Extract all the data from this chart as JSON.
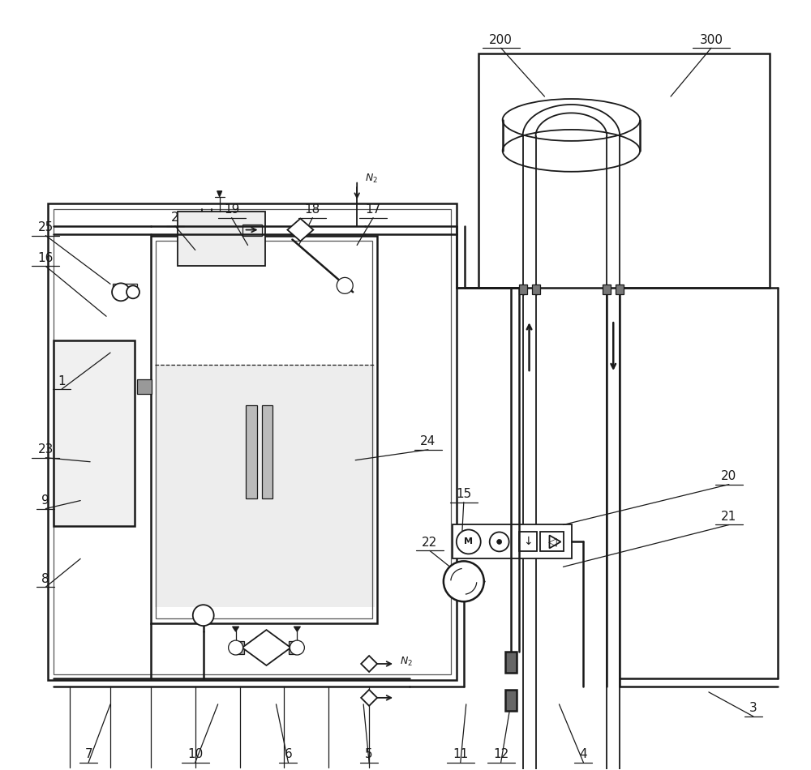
{
  "bg_color": "#ffffff",
  "lc": "#1a1a1a",
  "lw_main": 1.8,
  "lw_med": 1.3,
  "lw_thin": 0.9,
  "labels": [
    [
      "1",
      75,
      470,
      135,
      435
    ],
    [
      "2",
      215,
      268,
      240,
      308
    ],
    [
      "3",
      930,
      875,
      875,
      855
    ],
    [
      "4",
      720,
      932,
      690,
      870
    ],
    [
      "5",
      455,
      932,
      448,
      870
    ],
    [
      "6",
      355,
      932,
      340,
      870
    ],
    [
      "7",
      108,
      932,
      135,
      870
    ],
    [
      "8",
      55,
      715,
      98,
      690
    ],
    [
      "9",
      55,
      618,
      98,
      618
    ],
    [
      "10",
      240,
      932,
      268,
      870
    ],
    [
      "11",
      568,
      932,
      575,
      870
    ],
    [
      "12",
      618,
      932,
      630,
      870
    ],
    [
      "15",
      572,
      610,
      570,
      658
    ],
    [
      "16",
      55,
      318,
      130,
      390
    ],
    [
      "17",
      460,
      258,
      440,
      302
    ],
    [
      "18",
      385,
      258,
      368,
      302
    ],
    [
      "19",
      285,
      258,
      305,
      302
    ],
    [
      "20",
      900,
      588,
      695,
      648
    ],
    [
      "21",
      900,
      638,
      695,
      700
    ],
    [
      "22",
      530,
      670,
      555,
      700
    ],
    [
      "23",
      55,
      555,
      110,
      570
    ],
    [
      "24",
      528,
      545,
      438,
      568
    ],
    [
      "25",
      55,
      280,
      135,
      350
    ],
    [
      "200",
      618,
      48,
      672,
      118
    ],
    [
      "300",
      878,
      48,
      828,
      118
    ]
  ]
}
